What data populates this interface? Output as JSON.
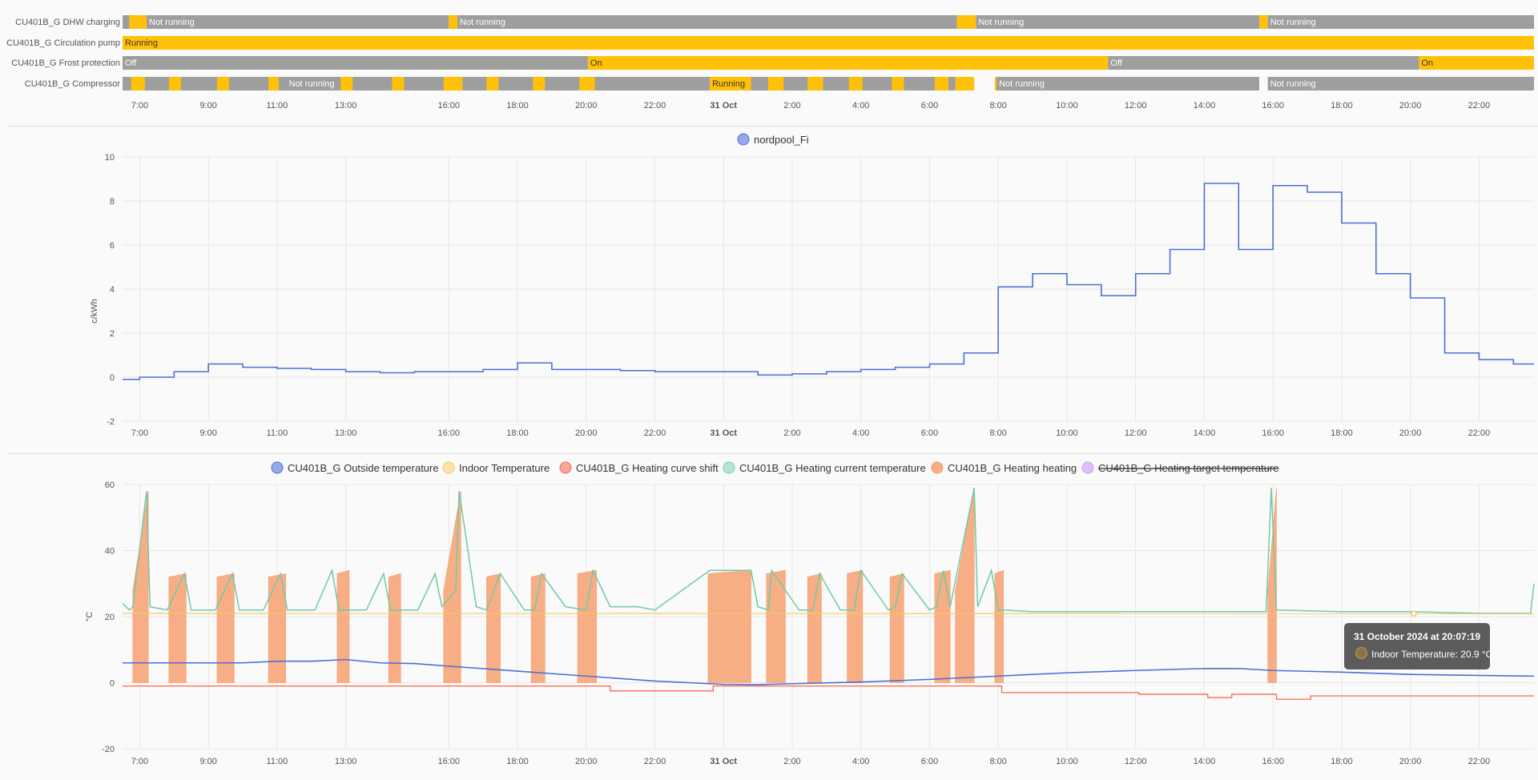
{
  "timeline": {
    "rows": [
      {
        "label": "CU401B_G DHW charging"
      },
      {
        "label": "CU401B_G Circulation pump"
      },
      {
        "label": "CU401B_G Frost protection"
      },
      {
        "label": "CU401B_G Compressor"
      }
    ],
    "segments": [
      {
        "row": 0,
        "state": "off",
        "from": 6.5,
        "to": 6.7,
        "text": ""
      },
      {
        "row": 0,
        "state": "on",
        "from": 6.7,
        "to": 7.2,
        "text": ""
      },
      {
        "row": 0,
        "state": "off",
        "from": 7.2,
        "to": 16.0,
        "text": "Not running"
      },
      {
        "row": 0,
        "state": "on",
        "from": 16.0,
        "to": 16.25,
        "text": ""
      },
      {
        "row": 0,
        "state": "off",
        "from": 16.25,
        "to": 30.8,
        "text": "Not running"
      },
      {
        "row": 0,
        "state": "on",
        "from": 30.8,
        "to": 31.35,
        "text": ""
      },
      {
        "row": 0,
        "state": "off",
        "from": 31.35,
        "to": 39.6,
        "text": "Not running"
      },
      {
        "row": 0,
        "state": "on",
        "from": 39.6,
        "to": 39.85,
        "text": ""
      },
      {
        "row": 0,
        "state": "off",
        "from": 39.85,
        "to": 47.6,
        "text": "Not running"
      },
      {
        "row": 1,
        "state": "on",
        "from": 6.5,
        "to": 47.6,
        "text": "Running"
      },
      {
        "row": 2,
        "state": "off",
        "from": 6.5,
        "to": 20.05,
        "text": "Off"
      },
      {
        "row": 2,
        "state": "on",
        "from": 20.05,
        "to": 35.2,
        "text": "On"
      },
      {
        "row": 2,
        "state": "off",
        "from": 35.2,
        "to": 44.25,
        "text": "Off"
      },
      {
        "row": 2,
        "state": "on",
        "from": 44.25,
        "to": 47.6,
        "text": "On"
      },
      {
        "row": 3,
        "state": "off",
        "from": 6.5,
        "to": 30.8,
        "text": "Not running"
      },
      {
        "row": 3,
        "state": "on",
        "from": 23.6,
        "to": 24.75,
        "text": "Running"
      },
      {
        "row": 3,
        "state": "off",
        "from": 31.95,
        "to": 39.6,
        "text": "Not running"
      },
      {
        "row": 3,
        "state": "off",
        "from": 39.85,
        "to": 47.6,
        "text": "Not running"
      }
    ]
  },
  "time_axis": {
    "ticks": [
      {
        "h": 7,
        "label": "7:00"
      },
      {
        "h": 9,
        "label": "9:00"
      },
      {
        "h": 11,
        "label": "11:00"
      },
      {
        "h": 13,
        "label": "13:00"
      },
      {
        "h": 16,
        "label": "16:00"
      },
      {
        "h": 18,
        "label": "18:00"
      },
      {
        "h": 20,
        "label": "20:00"
      },
      {
        "h": 22,
        "label": "22:00"
      },
      {
        "h": 24,
        "label": "31 Oct",
        "bold": true
      },
      {
        "h": 26,
        "label": "2:00"
      },
      {
        "h": 28,
        "label": "4:00"
      },
      {
        "h": 30,
        "label": "6:00"
      },
      {
        "h": 32,
        "label": "8:00"
      },
      {
        "h": 34,
        "label": "10:00"
      },
      {
        "h": 36,
        "label": "12:00"
      },
      {
        "h": 38,
        "label": "14:00"
      },
      {
        "h": 40,
        "label": "16:00"
      },
      {
        "h": 42,
        "label": "18:00"
      },
      {
        "h": 44,
        "label": "20:00"
      },
      {
        "h": 46,
        "label": "22:00"
      }
    ]
  },
  "colors": {
    "on": "#ffc107",
    "off": "#9e9e9e",
    "price": "#4b6fd6",
    "outside": "#4b6fd6",
    "indoor": "#ffd280",
    "curve_shift": "#f56a4a",
    "current": "#6fcaa8",
    "heating": "#f8ae84",
    "target": "#c99cf2"
  },
  "chart_data": [
    {
      "type": "line",
      "ylabel": "c/kWh",
      "ylim": [
        -2,
        10
      ],
      "yticks": [
        -2,
        0,
        2,
        4,
        6,
        8,
        10
      ],
      "series": [
        {
          "name": "nordpool_Fi",
          "step": true,
          "x": [
            6.5,
            7,
            8,
            9,
            10,
            11,
            12,
            13,
            14,
            15,
            16,
            17,
            18,
            19,
            20,
            21,
            22,
            23,
            24,
            25,
            26,
            27,
            28,
            29,
            30,
            31,
            32,
            33,
            34,
            35,
            36,
            37,
            38,
            39,
            40,
            41,
            42,
            43,
            44,
            45,
            46,
            47
          ],
          "values": [
            -0.1,
            0.0,
            0.25,
            0.6,
            0.45,
            0.4,
            0.35,
            0.25,
            0.2,
            0.25,
            0.25,
            0.35,
            0.65,
            0.35,
            0.35,
            0.3,
            0.25,
            0.25,
            0.25,
            0.1,
            0.15,
            0.25,
            0.35,
            0.45,
            0.6,
            1.1,
            4.1,
            4.7,
            4.2,
            3.7,
            4.7,
            5.8,
            8.8,
            5.8,
            8.7,
            8.4,
            7.0,
            4.7,
            3.6,
            1.1,
            0.8,
            0.6
          ]
        }
      ]
    },
    {
      "type": "area",
      "ylabel": "°C",
      "ylim": [
        -20,
        60
      ],
      "yticks": [
        -20,
        0,
        20,
        40,
        60
      ],
      "series": [
        {
          "name": "CU401B_G Outside temperature",
          "key": "outside",
          "x": [
            6.5,
            8,
            10,
            11,
            12,
            13,
            14,
            15,
            16,
            18,
            20,
            22,
            23,
            24,
            25,
            26,
            28,
            30,
            32,
            34,
            36,
            38,
            39,
            40,
            42,
            44,
            46,
            47.6
          ],
          "values": [
            6,
            6,
            6,
            6.5,
            6.5,
            7,
            6,
            5.8,
            5,
            3.5,
            2,
            0.5,
            0,
            -0.5,
            -0.6,
            -0.3,
            0.2,
            1,
            2,
            3,
            3.7,
            4.3,
            4.3,
            3.7,
            3.2,
            2.5,
            2.2,
            2
          ]
        },
        {
          "name": "Indoor Temperature",
          "key": "indoor",
          "x": [
            6.5,
            47.6
          ],
          "values": [
            21,
            20.9
          ]
        },
        {
          "name": "CU401B_G Heating curve shift",
          "key": "curve_shift",
          "x": [
            6.5,
            20.7,
            20.7,
            23.7,
            23.7,
            32.1,
            32.1,
            36.1,
            36.1,
            38.1,
            38.1,
            38.8,
            38.8,
            40.1,
            40.1,
            41.1,
            41.1,
            47.6
          ],
          "values": [
            -1,
            -1,
            -2.5,
            -2.5,
            -1,
            -1,
            -3,
            -3,
            -3.5,
            -3.5,
            -4.5,
            -4.5,
            -3.5,
            -3.5,
            -5,
            -5,
            -4,
            -4
          ]
        },
        {
          "name": "CU401B_G Heating current temperature",
          "key": "current",
          "x": [
            6.5,
            6.7,
            6.8,
            7.2,
            7.3,
            7.8,
            8.3,
            8.5,
            9.2,
            9.7,
            9.9,
            10.6,
            11.1,
            11.3,
            12.1,
            12.6,
            12.8,
            13.6,
            14.1,
            14.3,
            15.1,
            15.6,
            15.8,
            16.2,
            16.3,
            16.8,
            17.1,
            17.5,
            18.2,
            18.5,
            18.7,
            19.4,
            20.0,
            20.2,
            20.7,
            21.5,
            22.0,
            23.6,
            24.8,
            25.0,
            25.3,
            25.4,
            26.2,
            26.6,
            26.8,
            27.4,
            27.8,
            28.0,
            28.8,
            29.0,
            29.2,
            30.0,
            30.2,
            30.4,
            30.6,
            31.3,
            31.4,
            31.8,
            32.0,
            32.2,
            33,
            36,
            38,
            39.8,
            39.95,
            40.1,
            42,
            44,
            46,
            47.5,
            47.6
          ],
          "values": [
            24,
            22,
            23,
            58,
            23,
            22,
            33,
            22,
            22,
            33,
            22,
            22,
            33,
            22,
            22,
            34,
            22,
            22,
            33,
            22,
            22,
            33,
            23,
            28,
            58,
            23,
            22,
            33,
            22,
            22,
            33,
            23,
            22,
            34,
            23,
            23,
            22,
            34,
            34,
            23,
            22,
            34,
            22,
            22,
            33,
            22,
            22,
            34,
            22,
            23,
            33,
            22,
            23,
            34,
            23,
            59,
            23,
            34,
            22,
            22,
            21.5,
            21.5,
            21.5,
            21.5,
            59,
            22,
            21.5,
            21.5,
            21,
            21,
            30
          ]
        },
        {
          "name": "CU401B_G Heating heating",
          "key": "heating",
          "pulses": [
            [
              6.8,
              7.25,
              58
            ],
            [
              7.85,
              8.35,
              33
            ],
            [
              9.25,
              9.75,
              33
            ],
            [
              10.75,
              11.25,
              33
            ],
            [
              12.75,
              13.1,
              34
            ],
            [
              14.25,
              14.6,
              33
            ],
            [
              15.85,
              16.35,
              58
            ],
            [
              17.1,
              17.5,
              33
            ],
            [
              18.4,
              18.8,
              33
            ],
            [
              19.75,
              20.3,
              34
            ],
            [
              23.55,
              24.8,
              34
            ],
            [
              25.25,
              25.8,
              34
            ],
            [
              26.45,
              26.85,
              33
            ],
            [
              27.6,
              28.05,
              34
            ],
            [
              28.85,
              29.25,
              33
            ],
            [
              30.15,
              30.6,
              34
            ],
            [
              30.75,
              31.3,
              59
            ],
            [
              31.9,
              32.15,
              34
            ],
            [
              39.85,
              40.1,
              59
            ]
          ]
        },
        {
          "name": "CU401B_G Heating target temperature",
          "key": "target",
          "hidden": true
        }
      ]
    }
  ],
  "tooltip": {
    "title": "31 October 2024 at 20:07:19",
    "series": "Indoor Temperature",
    "value": "20.9 °C",
    "x": 44.1,
    "y": 20.9
  }
}
